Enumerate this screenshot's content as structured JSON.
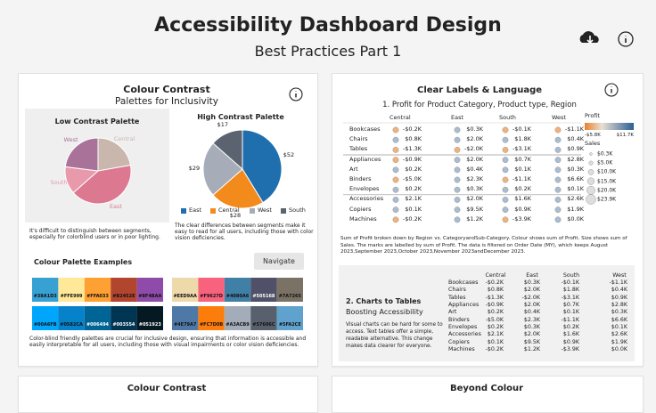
{
  "header": {
    "title": "Accessibility Dashboard Design",
    "subtitle": "Best Practices Part 1"
  },
  "contrast_card": {
    "title": "Colour Contrast",
    "subtitle": "Palettes for Inclusivity",
    "low": {
      "title": "Low Contrast Palette",
      "colors": [
        "#dc7890",
        "#c9b6ad",
        "#a97399",
        "#e899ab"
      ],
      "note": "It's difficult to distinguish between segments, especially for colorblind users or in poor lighting."
    },
    "high_note": "The clear differences between segments make it easy to read for all users, including those with color vision deficiencies.",
    "palettes": {
      "title": "Colour Palette Examples",
      "button": "Navigate",
      "sets": [
        [
          "#38A1D3",
          "#FFE999",
          "#FFA033",
          "#B2452E",
          "#8F4BAA"
        ],
        [
          "#EED9AA",
          "#F9627D",
          "#4080A6",
          "#505168",
          "#7A7265"
        ],
        [
          "#00A6FB",
          "#0582CA",
          "#006494",
          "#003554",
          "#051923"
        ],
        [
          "#4E79A7",
          "#FC7D0B",
          "#A3ACB9",
          "#57606C",
          "#5FA2CE"
        ]
      ],
      "note": "Color-blind friendly palettes are crucial for inclusive design, ensuring that information is accessible and easily interpretable for all users, including those with visual impairments or color vision deficiencies."
    }
  },
  "chart_data": {
    "type": "pie",
    "title": "High Contrast Palette",
    "categories": [
      "East",
      "Central",
      "West",
      "South"
    ],
    "values": [
      52,
      28,
      29,
      17
    ],
    "value_labels": [
      "$52",
      "$28",
      "$29",
      "$17"
    ],
    "colors": [
      "#1f6fae",
      "#f28a1c",
      "#a6adb8",
      "#5b6270"
    ]
  },
  "labels_card": {
    "title": "Clear Labels & Language",
    "table_title": "1. Profit for Product Category, Product type, Region",
    "columns": [
      "Central",
      "East",
      "South",
      "West"
    ],
    "rows": [
      {
        "label": "Bookcases",
        "cells": [
          "-$0.2K",
          "$0.3K",
          "-$0.1K",
          "-$1.1K"
        ]
      },
      {
        "label": "Chairs",
        "cells": [
          "$0.8K",
          "$2.0K",
          "$1.8K",
          "$0.4K"
        ]
      },
      {
        "label": "Tables",
        "cells": [
          "-$1.3K",
          "-$2.0K",
          "-$3.1K",
          "$0.9K"
        ]
      },
      {
        "label": "Appliances",
        "cells": [
          "-$0.9K",
          "$2.0K",
          "$0.7K",
          "$2.8K"
        ]
      },
      {
        "label": "Art",
        "cells": [
          "$0.2K",
          "$0.4K",
          "$0.1K",
          "$0.3K"
        ]
      },
      {
        "label": "Binders",
        "cells": [
          "-$5.0K",
          "$2.3K",
          "-$1.1K",
          "$6.6K"
        ]
      },
      {
        "label": "Envelopes",
        "cells": [
          "$0.2K",
          "$0.3K",
          "$0.2K",
          "$0.1K"
        ]
      },
      {
        "label": "Accessories",
        "cells": [
          "$2.1K",
          "$2.0K",
          "$1.6K",
          "$2.6K"
        ]
      },
      {
        "label": "Copiers",
        "cells": [
          "$0.1K",
          "$9.5K",
          "$0.9K",
          "$1.9K"
        ]
      },
      {
        "label": "Machines",
        "cells": [
          "-$0.2K",
          "$1.2K",
          "-$3.9K",
          "$0.0K"
        ]
      }
    ],
    "legend": {
      "color_title": "Profit",
      "color_range": [
        "-$5.8K",
        "$11.7K"
      ],
      "size_title": "Sales",
      "sizes": [
        "$0.3K",
        "$5.0K",
        "$10.0K",
        "$15.0K",
        "$20.0K",
        "$23.9K"
      ]
    },
    "note": "Sum of Profit broken down by Region vs. CategoryandSub-Category. Colour shows sum of Profit. Size shows sum of Sales. The marks are labelled by sum of Profit. The data is filtered on Order Date (MY), which keeps August 2023,September 2023,October 2023,November 2023andDecember 2023.",
    "panel": {
      "title": "2. Charts to Tables",
      "subtitle": "Boosting Accessibility",
      "text": "Visual charts can be hard for some to access. Text tables offer a simple, readable alternative. This change makes data clearer for everyone."
    }
  },
  "footer": {
    "left": "Colour Contrast",
    "right": "Beyond Colour"
  }
}
